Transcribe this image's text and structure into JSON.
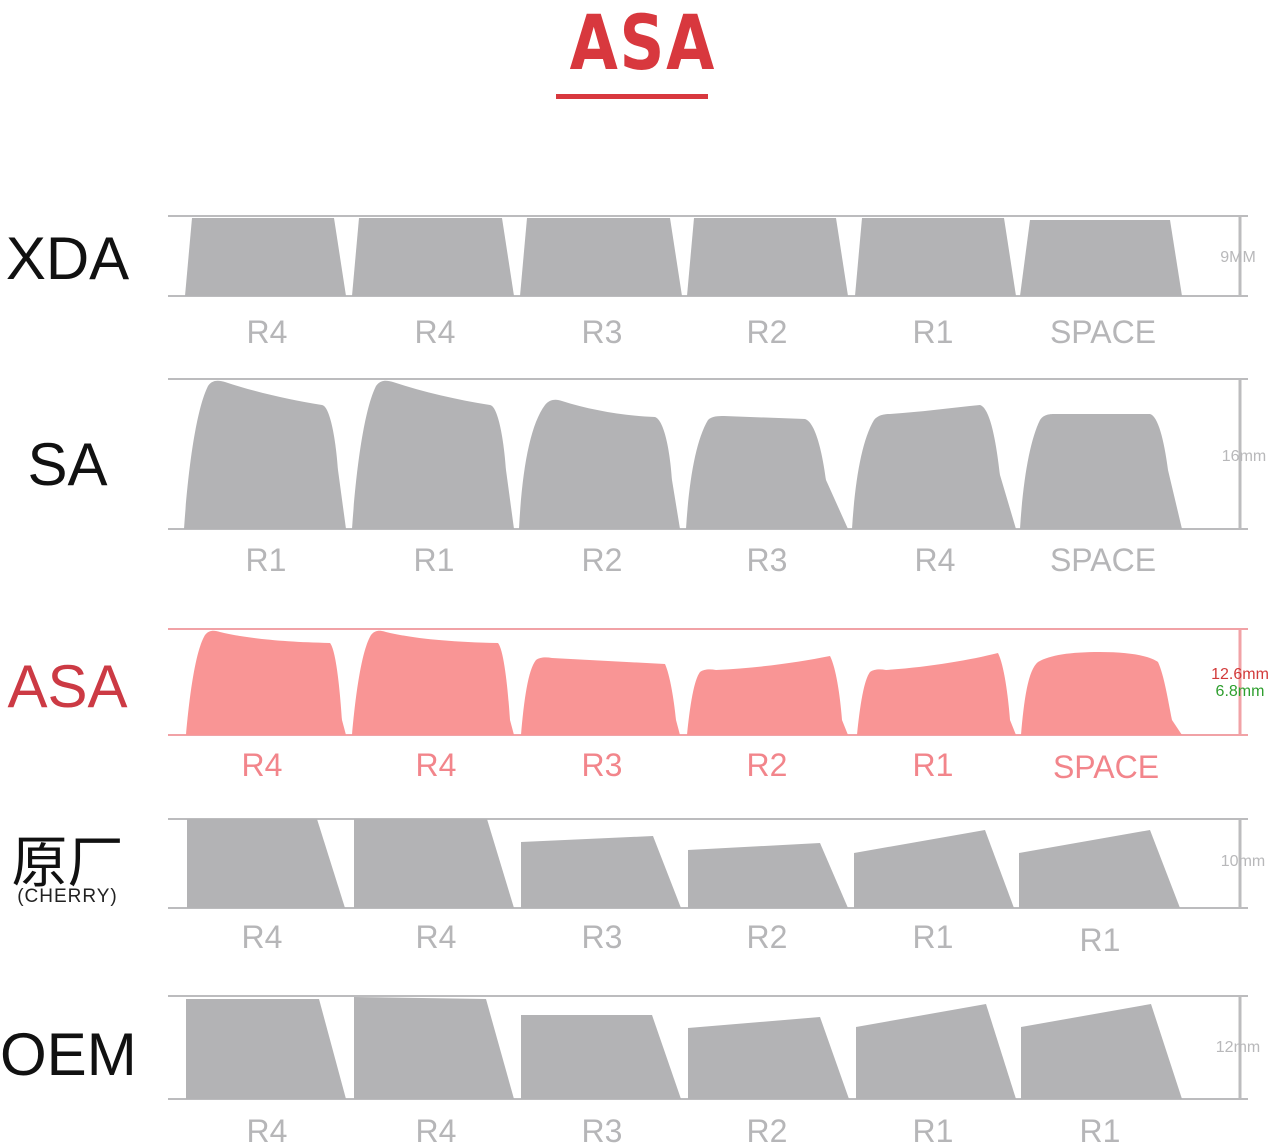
{
  "title": "ASA",
  "colors": {
    "title": "#d8383e",
    "keycap": "#b3b3b5",
    "keycap_highlight": "#f99595",
    "guide": "#bcbcbe",
    "guide_highlight": "#f1a2a6",
    "row_label": "#b6b6b8",
    "row_label_highlight": "#f2858b",
    "dim_primary_highlight": "#d23a3a",
    "dim_secondary_highlight": "#2e9e2e"
  },
  "profiles": [
    {
      "name": "XDA",
      "subname": "",
      "highlight": false,
      "height": "9MM",
      "height_secondary": "",
      "rows": [
        "R4",
        "R4",
        "R3",
        "R2",
        "R1",
        "SPACE"
      ]
    },
    {
      "name": "SA",
      "subname": "",
      "highlight": false,
      "height": "16mm",
      "height_secondary": "",
      "rows": [
        "R1",
        "R1",
        "R2",
        "R3",
        "R4",
        "SPACE"
      ]
    },
    {
      "name": "ASA",
      "subname": "",
      "highlight": true,
      "height": "12.6mm",
      "height_secondary": "6.8mm",
      "rows": [
        "R4",
        "R4",
        "R3",
        "R2",
        "R1",
        "SPACE"
      ]
    },
    {
      "name": "原厂",
      "subname": "(CHERRY)",
      "highlight": false,
      "height": "10mm",
      "height_secondary": "",
      "rows": [
        "R4",
        "R4",
        "R3",
        "R2",
        "R1",
        "R1"
      ]
    },
    {
      "name": "OEM",
      "subname": "",
      "highlight": false,
      "height": "12mm",
      "height_secondary": "",
      "rows": [
        "R4",
        "R4",
        "R3",
        "R2",
        "R1",
        "R1"
      ]
    }
  ]
}
